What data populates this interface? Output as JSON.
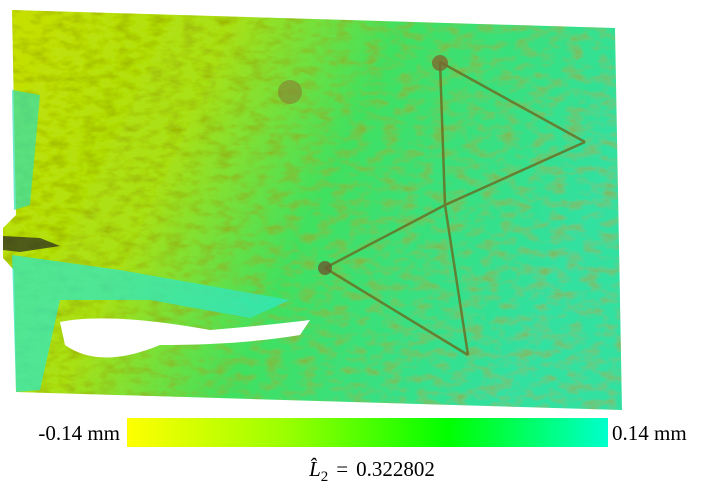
{
  "colorbar": {
    "min_label": "-0.14 mm",
    "max_label": "0.14 mm",
    "colors": [
      "#ffff00",
      "#99ff00",
      "#00ff00",
      "#00ffcc"
    ]
  },
  "caption": {
    "variable": "L̂",
    "subscript": "2",
    "relation": "=",
    "value": "0.322802"
  }
}
